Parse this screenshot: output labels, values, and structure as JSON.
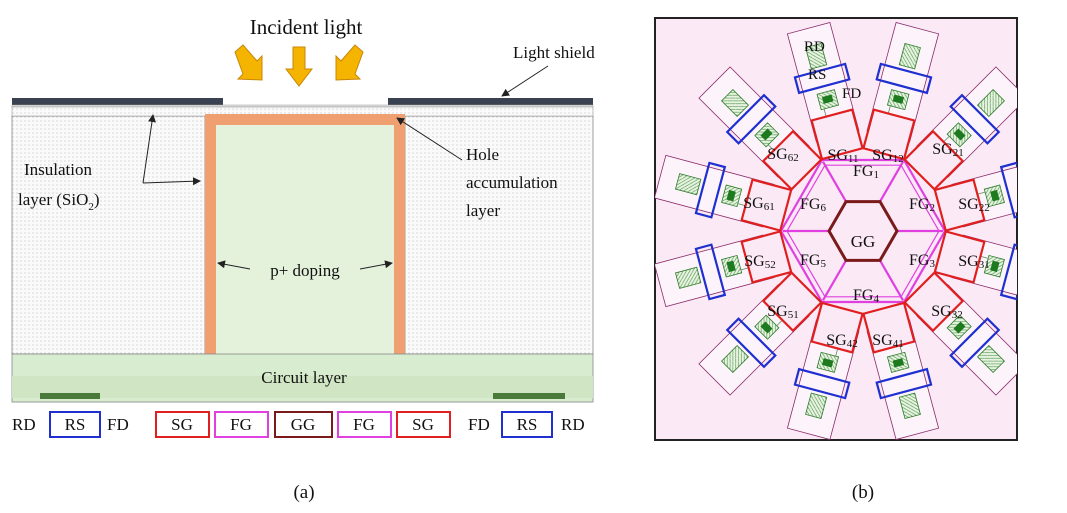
{
  "panel_a": {
    "label": "(a)",
    "incident_light": "Incident light",
    "light_shield": "Light shield",
    "insulation_line1": "Insulation",
    "insulation_line2_prefix": "layer (SiO",
    "insulation_sub": "2",
    "insulation_suffix": ")",
    "hole_line1": "Hole",
    "hole_line2": "accumulation",
    "hole_line3": "layer",
    "p_doping": "p+ doping",
    "circuit_layer": "Circuit layer",
    "bottom_labels": {
      "rd_left": "RD",
      "rs_left": "RS",
      "fd_left": "FD",
      "sg_left": "SG",
      "fg_left": "FG",
      "gg": "GG",
      "fg_right": "FG",
      "sg_right": "SG",
      "fd_right": "FD",
      "rs_right": "RS",
      "rd_right": "RD"
    }
  },
  "panel_b": {
    "label": "(b)",
    "rd": "RD",
    "rs": "RS",
    "fd": "FD",
    "gg": "GG",
    "fg": [
      {
        "base": "FG",
        "sub": "1"
      },
      {
        "base": "FG",
        "sub": "2"
      },
      {
        "base": "FG",
        "sub": "3"
      },
      {
        "base": "FG",
        "sub": "4"
      },
      {
        "base": "FG",
        "sub": "5"
      },
      {
        "base": "FG",
        "sub": "6"
      }
    ],
    "sg": [
      {
        "base": "SG",
        "sub": "11"
      },
      {
        "base": "SG",
        "sub": "12"
      },
      {
        "base": "SG",
        "sub": "21"
      },
      {
        "base": "SG",
        "sub": "22"
      },
      {
        "base": "SG",
        "sub": "31"
      },
      {
        "base": "SG",
        "sub": "32"
      },
      {
        "base": "SG",
        "sub": "41"
      },
      {
        "base": "SG",
        "sub": "42"
      },
      {
        "base": "SG",
        "sub": "51"
      },
      {
        "base": "SG",
        "sub": "52"
      },
      {
        "base": "SG",
        "sub": "61"
      },
      {
        "base": "SG",
        "sub": "62"
      }
    ]
  },
  "colors": {
    "sg": "#e02020",
    "fg": "#e040e0",
    "gg": "#7a1a1a",
    "rs": "#1f2fd0",
    "hole_layer": "#f0a070",
    "p_region": "#e4f2dc",
    "circuit": "#d8ecd0",
    "shield": "#3a4150",
    "arrow": "#f5b400",
    "panel_b_bg": "#fbeaf6"
  }
}
